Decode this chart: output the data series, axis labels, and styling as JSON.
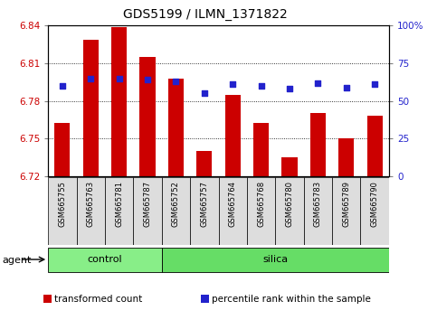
{
  "title": "GDS5199 / ILMN_1371822",
  "samples": [
    "GSM665755",
    "GSM665763",
    "GSM665781",
    "GSM665787",
    "GSM665752",
    "GSM665757",
    "GSM665764",
    "GSM665768",
    "GSM665780",
    "GSM665783",
    "GSM665789",
    "GSM665790"
  ],
  "transformed_counts": [
    6.762,
    6.829,
    6.839,
    6.815,
    6.798,
    6.74,
    6.785,
    6.762,
    6.735,
    6.77,
    6.75,
    6.768
  ],
  "percentile_ranks": [
    60,
    65,
    65,
    64,
    63,
    55,
    61,
    60,
    58,
    62,
    59,
    61
  ],
  "y_min": 6.72,
  "y_max": 6.84,
  "y_ticks": [
    6.72,
    6.75,
    6.78,
    6.81,
    6.84
  ],
  "y_tick_labels": [
    "6.72",
    "6.75",
    "6.78",
    "6.81",
    "6.84"
  ],
  "right_y_ticks": [
    0,
    25,
    50,
    75,
    100
  ],
  "right_y_labels": [
    "0",
    "25",
    "50",
    "75",
    "100%"
  ],
  "bar_color": "#cc0000",
  "dot_color": "#2222cc",
  "control_color": "#88ee88",
  "silica_color": "#66dd66",
  "groups": [
    {
      "label": "control",
      "start": 0,
      "end": 4
    },
    {
      "label": "silica",
      "start": 4,
      "end": 12
    }
  ],
  "bar_width": 0.55,
  "tick_label_color_left": "#cc0000",
  "tick_label_color_right": "#2222cc",
  "title_fontsize": 10,
  "axis_fontsize": 7.5,
  "xticklabel_fontsize": 6.0,
  "legend_fontsize": 7.5
}
